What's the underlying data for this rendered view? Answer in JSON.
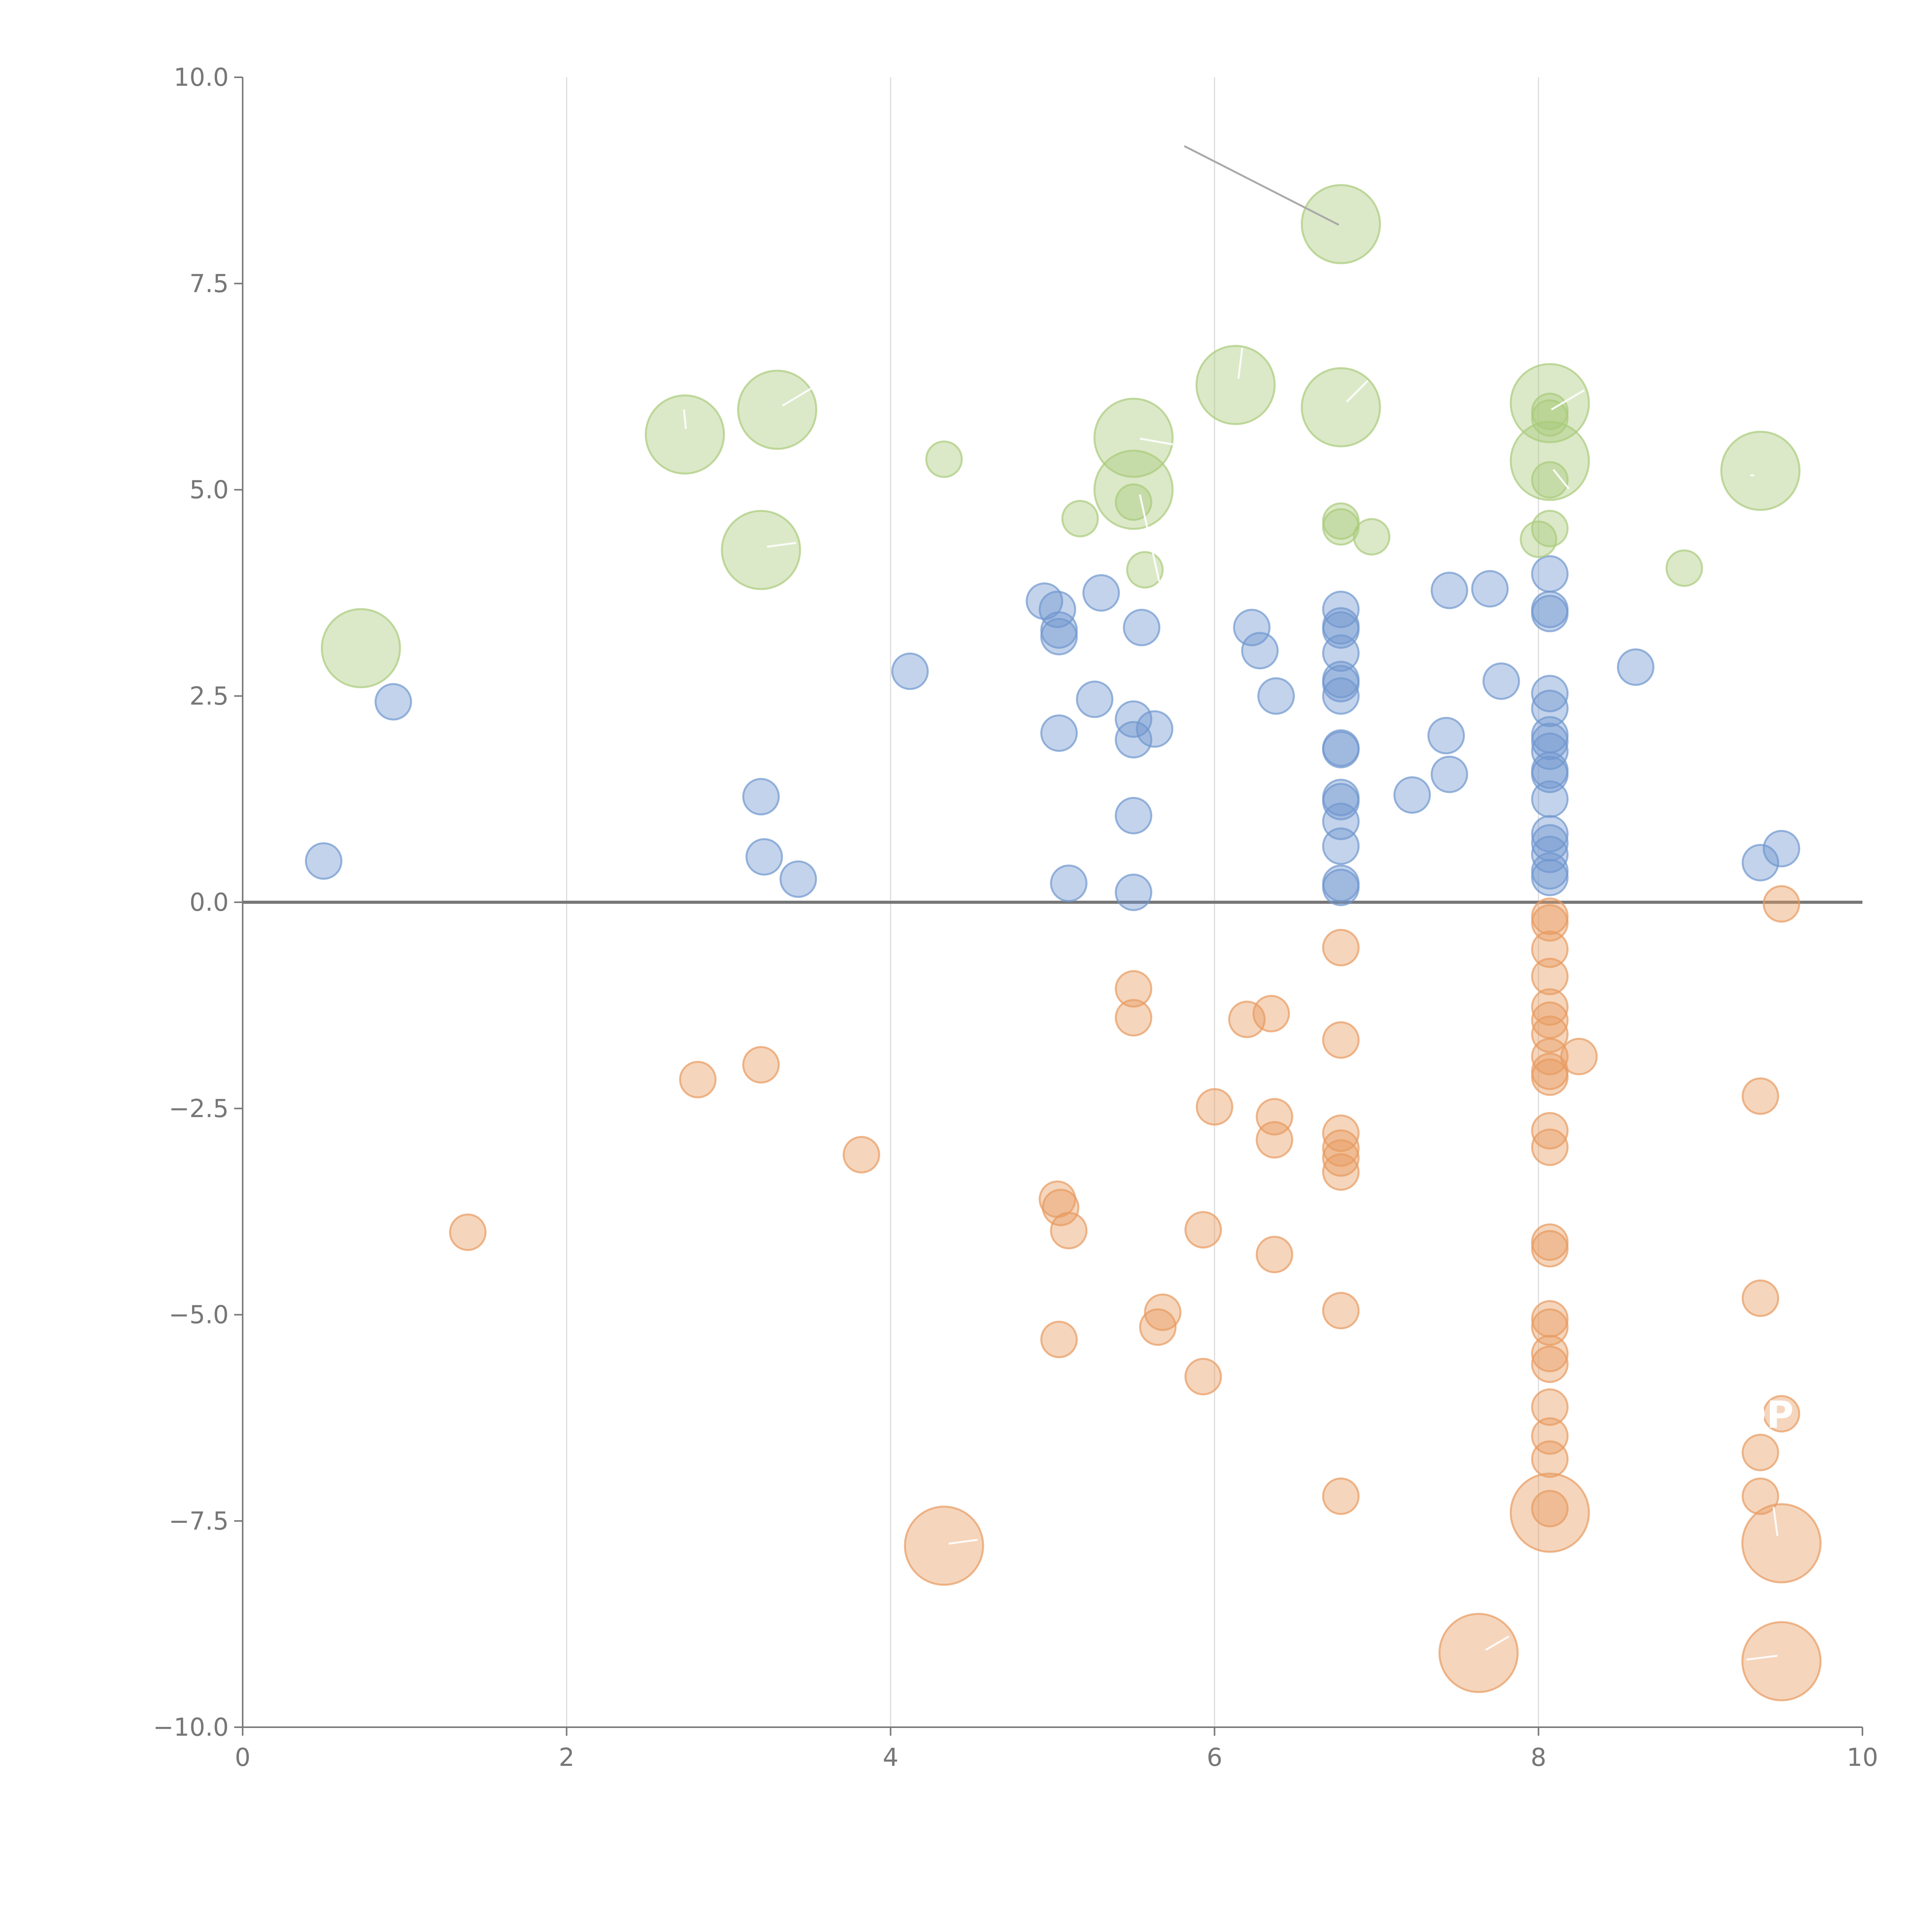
{
  "chart_data": {
    "type": "scatter",
    "title": "",
    "xlabel": "",
    "ylabel": "",
    "xlim": [
      0,
      10
    ],
    "ylim": [
      -10,
      10
    ],
    "x_ticks": [
      "0",
      "2",
      "4",
      "6",
      "8",
      "10"
    ],
    "y_ticks": [
      "10.0",
      "7.5",
      "5.0",
      "2.5",
      "0.0",
      "−2.5",
      "−5.0",
      "−7.5",
      "−10.0"
    ],
    "x_tick_values": [
      0,
      2,
      4,
      6,
      8,
      10
    ],
    "y_tick_values": [
      10,
      7.5,
      5,
      2.5,
      0,
      -2.5,
      -5,
      -7.5,
      -10
    ],
    "grid_x": [
      2,
      4,
      6,
      8
    ],
    "zero_line": 0,
    "colors": {
      "blue": "#6f97cf",
      "orange": "#e89a5f",
      "green": "#a9cb7b",
      "axis": "#7a7a7a",
      "grid": "#dddddd"
    },
    "series": [
      {
        "name": "blue",
        "color": "#6f97cf",
        "points": [
          [
            0.5,
            0.5,
            1
          ],
          [
            0.93,
            2.43,
            1
          ],
          [
            3.2,
            1.28,
            1
          ],
          [
            3.22,
            0.55,
            1
          ],
          [
            3.43,
            0.28,
            1
          ],
          [
            4.12,
            2.8,
            1
          ],
          [
            4.95,
            3.65,
            1
          ],
          [
            5.03,
            3.55,
            1
          ],
          [
            5.04,
            3.3,
            1
          ],
          [
            5.04,
            3.22,
            1
          ],
          [
            5.04,
            2.05,
            1
          ],
          [
            5.1,
            0.23,
            1
          ],
          [
            5.26,
            2.46,
            1
          ],
          [
            5.3,
            3.75,
            1
          ],
          [
            5.5,
            2.22,
            1
          ],
          [
            5.5,
            1.97,
            1
          ],
          [
            5.5,
            1.05,
            1
          ],
          [
            5.5,
            0.12,
            1
          ],
          [
            5.55,
            3.33,
            1
          ],
          [
            5.63,
            2.1,
            1
          ],
          [
            6.23,
            3.33,
            1
          ],
          [
            6.28,
            3.05,
            1
          ],
          [
            6.38,
            2.5,
            1
          ],
          [
            6.78,
            3.55,
            1
          ],
          [
            6.78,
            3.35,
            1
          ],
          [
            6.78,
            3.3,
            1
          ],
          [
            6.78,
            3.02,
            1
          ],
          [
            6.78,
            2.7,
            1
          ],
          [
            6.78,
            2.65,
            1
          ],
          [
            6.78,
            2.5,
            1
          ],
          [
            6.78,
            1.87,
            1
          ],
          [
            6.78,
            1.85,
            1
          ],
          [
            6.78,
            1.27,
            1
          ],
          [
            6.78,
            1.22,
            1
          ],
          [
            6.78,
            0.98,
            1
          ],
          [
            6.78,
            0.68,
            1
          ],
          [
            6.78,
            0.23,
            1
          ],
          [
            6.78,
            0.18,
            1
          ],
          [
            7.22,
            1.3,
            1
          ],
          [
            7.43,
            2.02,
            1
          ],
          [
            7.45,
            1.55,
            1
          ],
          [
            7.45,
            3.78,
            1
          ],
          [
            7.7,
            3.8,
            1
          ],
          [
            7.77,
            2.68,
            1
          ],
          [
            8.07,
            3.98,
            1
          ],
          [
            8.07,
            3.55,
            1
          ],
          [
            8.07,
            3.5,
            1
          ],
          [
            8.07,
            2.53,
            1
          ],
          [
            8.07,
            2.35,
            1
          ],
          [
            8.07,
            2.03,
            1
          ],
          [
            8.07,
            1.95,
            1
          ],
          [
            8.07,
            1.83,
            1
          ],
          [
            8.07,
            1.6,
            1
          ],
          [
            8.07,
            1.55,
            1
          ],
          [
            8.07,
            1.25,
            1
          ],
          [
            8.07,
            0.83,
            1
          ],
          [
            8.07,
            0.72,
            1
          ],
          [
            8.07,
            0.58,
            1
          ],
          [
            8.07,
            0.38,
            1
          ],
          [
            8.07,
            0.3,
            1
          ],
          [
            8.6,
            2.85,
            1
          ],
          [
            9.37,
            0.48,
            1
          ],
          [
            9.5,
            0.65,
            1
          ]
        ]
      },
      {
        "name": "orange",
        "color": "#e89a5f",
        "points": [
          [
            1.39,
            -4.0,
            1
          ],
          [
            2.81,
            -2.15,
            1
          ],
          [
            3.2,
            -1.97,
            1
          ],
          [
            3.82,
            -3.06,
            1
          ],
          [
            5.03,
            -3.6,
            1
          ],
          [
            5.05,
            -3.7,
            1
          ],
          [
            5.1,
            -3.98,
            1
          ],
          [
            5.04,
            -5.3,
            1
          ],
          [
            5.5,
            -1.05,
            1
          ],
          [
            5.5,
            -1.4,
            1
          ],
          [
            5.68,
            -4.97,
            1
          ],
          [
            5.65,
            -5.15,
            1
          ],
          [
            5.93,
            -3.97,
            1
          ],
          [
            5.93,
            -5.75,
            1
          ],
          [
            6.0,
            -2.48,
            1
          ],
          [
            6.2,
            -1.42,
            1
          ],
          [
            6.35,
            -1.35,
            1
          ],
          [
            6.37,
            -2.6,
            1
          ],
          [
            6.37,
            -2.88,
            1
          ],
          [
            6.37,
            -4.27,
            1
          ],
          [
            6.78,
            -0.55,
            1
          ],
          [
            6.78,
            -1.67,
            1
          ],
          [
            6.78,
            -2.8,
            1
          ],
          [
            6.78,
            -2.98,
            1
          ],
          [
            6.78,
            -3.1,
            1
          ],
          [
            6.78,
            -3.27,
            1
          ],
          [
            6.78,
            -4.95,
            1
          ],
          [
            6.78,
            -7.2,
            1
          ],
          [
            8.07,
            -0.17,
            1
          ],
          [
            8.07,
            -0.25,
            1
          ],
          [
            8.07,
            -0.57,
            1
          ],
          [
            8.07,
            -0.9,
            1
          ],
          [
            8.07,
            -1.27,
            1
          ],
          [
            8.07,
            -1.43,
            1
          ],
          [
            8.07,
            -1.6,
            1
          ],
          [
            8.07,
            -1.87,
            1
          ],
          [
            8.07,
            -2.05,
            1
          ],
          [
            8.07,
            -2.12,
            1
          ],
          [
            8.07,
            -2.77,
            1
          ],
          [
            8.07,
            -2.97,
            1
          ],
          [
            8.07,
            -4.12,
            1
          ],
          [
            8.07,
            -4.2,
            1
          ],
          [
            8.07,
            -5.05,
            1
          ],
          [
            8.07,
            -5.15,
            1
          ],
          [
            8.07,
            -5.47,
            1
          ],
          [
            8.07,
            -5.6,
            1
          ],
          [
            8.07,
            -6.12,
            1
          ],
          [
            8.07,
            -6.47,
            1
          ],
          [
            8.07,
            -6.75,
            1
          ],
          [
            8.07,
            -7.35,
            1
          ],
          [
            8.25,
            -1.87,
            1
          ],
          [
            9.37,
            -2.35,
            1
          ],
          [
            9.37,
            -4.8,
            1
          ],
          [
            9.37,
            -6.67,
            1
          ],
          [
            9.37,
            -7.2,
            1
          ],
          [
            9.5,
            -0.02,
            1
          ],
          [
            9.5,
            -6.2,
            1
          ],
          [
            4.33,
            -7.8,
            2.2
          ],
          [
            7.63,
            -9.1,
            2.2
          ],
          [
            8.07,
            -7.4,
            2.2
          ],
          [
            9.5,
            -7.77,
            2.2
          ],
          [
            9.5,
            -9.2,
            2.2
          ]
        ]
      },
      {
        "name": "green",
        "color": "#a9cb7b",
        "points": [
          [
            4.33,
            5.37,
            1
          ],
          [
            5.17,
            4.65,
            1
          ],
          [
            5.5,
            4.85,
            1
          ],
          [
            5.57,
            4.03,
            1
          ],
          [
            6.78,
            4.62,
            1
          ],
          [
            6.78,
            4.55,
            1
          ],
          [
            6.97,
            4.43,
            1
          ],
          [
            8.0,
            4.4,
            1
          ],
          [
            8.07,
            4.53,
            1
          ],
          [
            8.07,
            5.12,
            1
          ],
          [
            8.07,
            5.95,
            1
          ],
          [
            8.07,
            5.87,
            1
          ],
          [
            8.9,
            4.05,
            1
          ],
          [
            0.73,
            3.08,
            2.2
          ],
          [
            2.73,
            5.67,
            2.2
          ],
          [
            3.2,
            4.27,
            2.2
          ],
          [
            3.3,
            5.97,
            2.2
          ],
          [
            5.5,
            5.63,
            2.2
          ],
          [
            5.5,
            5.0,
            2.2
          ],
          [
            6.13,
            6.27,
            2.2
          ],
          [
            6.78,
            8.22,
            2.2
          ],
          [
            6.78,
            6.0,
            2.2
          ],
          [
            8.07,
            6.05,
            2.2
          ],
          [
            8.07,
            5.35,
            2.2
          ],
          [
            9.37,
            5.23,
            2.2
          ]
        ]
      }
    ],
    "annotations": [
      {
        "text": "OP",
        "x": 9.35,
        "y": -6.15
      }
    ]
  }
}
